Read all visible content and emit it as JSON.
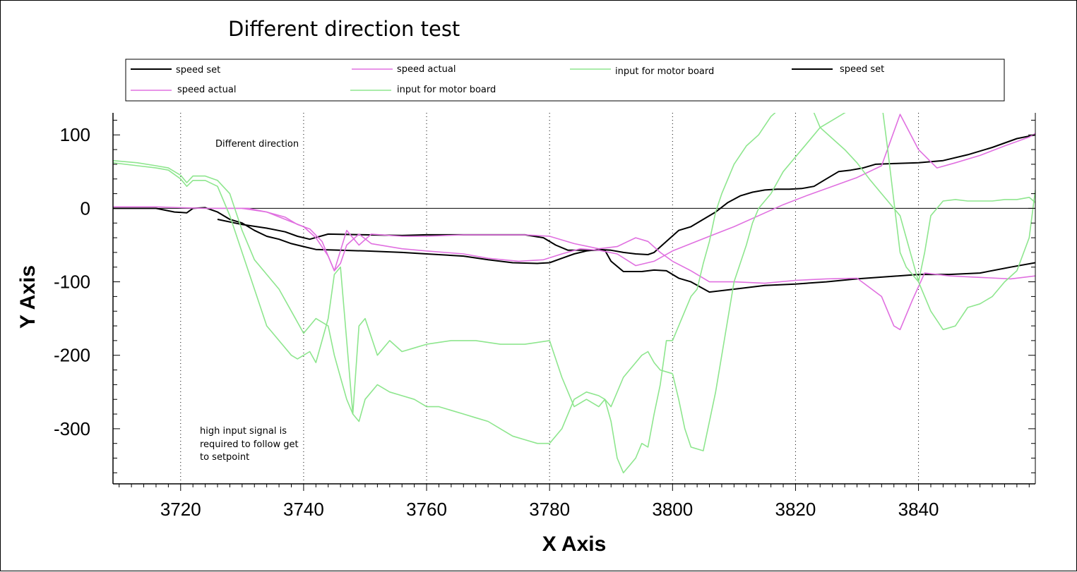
{
  "chart_data": {
    "type": "line",
    "title": "Different direction test",
    "xlabel": "X Axis",
    "ylabel": "Y Axis",
    "xlim": [
      3709,
      3859
    ],
    "ylim": [
      -375,
      130
    ],
    "x_ticks": [
      3720,
      3740,
      3760,
      3780,
      3800,
      3820,
      3840
    ],
    "y_ticks": [
      100,
      0,
      -100,
      -200,
      -300
    ],
    "x_tick_labels": [
      "3720",
      "3740",
      "3760",
      "3780",
      "3800",
      "3820",
      "3840"
    ],
    "y_tick_labels": [
      "100",
      "0",
      "-100",
      "-200",
      "-300"
    ],
    "grid": "vertical dotted at major x ticks",
    "zero_line": true,
    "legend_position": "top (boxed, two rows)",
    "legend": [
      {
        "label": "speed set",
        "color": "#000000"
      },
      {
        "label": "speed actual",
        "color": "#e070e0"
      },
      {
        "label": "input for motor board",
        "color": "#8ee68e"
      },
      {
        "label": "speed set",
        "color": "#000000"
      },
      {
        "label": "speed actual",
        "color": "#e070e0"
      },
      {
        "label": "input for motor board",
        "color": "#8ee68e"
      }
    ],
    "annotations": [
      "Different direction",
      "high input signal is",
      "required to follow get",
      "to setpoint"
    ],
    "series": [
      {
        "name": "speed set",
        "color": "#000000",
        "x": [
          3709,
          3716,
          3719,
          3721,
          3722,
          3724,
          3726,
          3728,
          3730,
          3732,
          3734,
          3736,
          3738,
          3740,
          3742,
          3746,
          3750,
          3756,
          3760,
          3766,
          3770,
          3774,
          3778,
          3780,
          3782,
          3784,
          3786,
          3788,
          3790,
          3792,
          3794,
          3796,
          3797,
          3799,
          3801,
          3803,
          3805,
          3807,
          3809,
          3811,
          3813,
          3815,
          3817,
          3819,
          3821,
          3823,
          3825,
          3827,
          3829,
          3831,
          3833,
          3836,
          3840,
          3844,
          3848,
          3852,
          3856,
          3859
        ],
        "y": [
          0,
          0,
          -5,
          -6,
          0,
          1,
          -5,
          -15,
          -20,
          -30,
          -38,
          -42,
          -48,
          -52,
          -56,
          -57,
          -58,
          -60,
          -62,
          -65,
          -70,
          -74,
          -75,
          -74,
          -68,
          -62,
          -58,
          -56,
          -57,
          -60,
          -62,
          -63,
          -60,
          -45,
          -30,
          -25,
          -15,
          -5,
          8,
          17,
          22,
          25,
          26,
          26,
          27,
          30,
          40,
          50,
          52,
          55,
          60,
          61,
          62,
          65,
          73,
          83,
          95,
          100
        ]
      },
      {
        "name": "speed set",
        "color": "#000000",
        "x": [
          3726,
          3730,
          3734,
          3737,
          3739,
          3741,
          3744,
          3750,
          3756,
          3760,
          3770,
          3776,
          3779,
          3781,
          3783,
          3786,
          3789,
          3790,
          3792,
          3795,
          3797,
          3799,
          3801,
          3803,
          3806,
          3810,
          3815,
          3820,
          3825,
          3830,
          3835,
          3840,
          3845,
          3850,
          3855,
          3859
        ],
        "y": [
          -15,
          -22,
          -27,
          -32,
          -38,
          -42,
          -35,
          -36,
          -37,
          -36,
          -36,
          -36,
          -40,
          -50,
          -57,
          -57,
          -57,
          -72,
          -86,
          -86,
          -84,
          -85,
          -95,
          -100,
          -114,
          -110,
          -105,
          -103,
          -100,
          -96,
          -93,
          -90,
          -90,
          -88,
          -80,
          -74
        ]
      },
      {
        "name": "speed actual",
        "color": "#e070e0",
        "x": [
          3709,
          3716,
          3720,
          3724,
          3728,
          3731,
          3734,
          3737,
          3739,
          3741,
          3743,
          3745,
          3746,
          3747,
          3749,
          3751,
          3756,
          3760,
          3766,
          3770,
          3775,
          3779,
          3782,
          3785,
          3788,
          3791,
          3794,
          3797,
          3800,
          3803,
          3806,
          3810,
          3814,
          3818,
          3822,
          3826,
          3830,
          3834,
          3837,
          3840,
          3843,
          3846,
          3850,
          3854,
          3858,
          3859
        ],
        "y": [
          2,
          2,
          1,
          0,
          0,
          0,
          -5,
          -12,
          -22,
          -28,
          -45,
          -85,
          -75,
          -50,
          -35,
          -48,
          -55,
          -58,
          -62,
          -68,
          -72,
          -70,
          -62,
          -55,
          -57,
          -62,
          -78,
          -72,
          -58,
          -48,
          -38,
          -25,
          -10,
          5,
          18,
          30,
          42,
          58,
          128,
          80,
          55,
          62,
          72,
          85,
          97,
          102
        ]
      },
      {
        "name": "speed actual",
        "color": "#e070e0",
        "x": [
          3730,
          3734,
          3737,
          3740,
          3742,
          3744,
          3745,
          3747,
          3749,
          3751,
          3756,
          3760,
          3766,
          3770,
          3776,
          3780,
          3784,
          3788,
          3791,
          3794,
          3796,
          3798,
          3800,
          3803,
          3806,
          3810,
          3815,
          3820,
          3825,
          3830,
          3834,
          3836,
          3837,
          3839,
          3841,
          3845,
          3850,
          3855,
          3859
        ],
        "y": [
          0,
          -5,
          -15,
          -25,
          -40,
          -65,
          -85,
          -30,
          -50,
          -35,
          -38,
          -38,
          -36,
          -36,
          -36,
          -38,
          -48,
          -55,
          -52,
          -40,
          -45,
          -60,
          -72,
          -85,
          -100,
          -100,
          -102,
          -98,
          -96,
          -95,
          -120,
          -160,
          -165,
          -125,
          -88,
          -92,
          -94,
          -96,
          -92
        ]
      },
      {
        "name": "input for motor board",
        "color": "#8ee68e",
        "x": [
          3709,
          3713,
          3716,
          3718,
          3720,
          3721,
          3722,
          3724,
          3726,
          3728,
          3730,
          3732,
          3734,
          3736,
          3738,
          3739,
          3740,
          3741,
          3742,
          3743,
          3744,
          3745,
          3746,
          3747,
          3748,
          3749,
          3750,
          3752,
          3754,
          3756,
          3758,
          3760,
          3764,
          3768,
          3772,
          3776,
          3780,
          3782,
          3784,
          3786,
          3788,
          3789,
          3790,
          3791,
          3792,
          3793,
          3794,
          3795,
          3796,
          3797,
          3798,
          3799,
          3800,
          3801,
          3802,
          3803,
          3804,
          3805,
          3806,
          3807,
          3808,
          3810,
          3812,
          3814,
          3816,
          3818,
          3820,
          3821,
          3822,
          3823,
          3824,
          3826,
          3828,
          3830,
          3832,
          3834,
          3836,
          3837,
          3838,
          3839,
          3840,
          3842,
          3844,
          3846,
          3848,
          3850,
          3852,
          3854,
          3856,
          3858,
          3859
        ],
        "y": [
          62,
          58,
          55,
          52,
          40,
          30,
          38,
          38,
          30,
          -10,
          -60,
          -110,
          -160,
          -180,
          -200,
          -205,
          -200,
          -195,
          -210,
          -180,
          -150,
          -90,
          -80,
          -180,
          -280,
          -160,
          -150,
          -200,
          -180,
          -195,
          -190,
          -185,
          -180,
          -180,
          -185,
          -185,
          -180,
          -230,
          -270,
          -260,
          -270,
          -260,
          -290,
          -340,
          -360,
          -350,
          -340,
          -320,
          -325,
          -280,
          -240,
          -180,
          -180,
          -160,
          -140,
          -120,
          -110,
          -75,
          -45,
          -5,
          20,
          60,
          85,
          100,
          125,
          140,
          150,
          155,
          150,
          130,
          110,
          95,
          80,
          62,
          40,
          20,
          0,
          -10,
          -40,
          -70,
          -100,
          -140,
          -165,
          -160,
          -135,
          -130,
          -120,
          -100,
          -85,
          -40,
          25
        ]
      },
      {
        "name": "input for motor board",
        "color": "#8ee68e",
        "x": [
          3709,
          3713,
          3716,
          3718,
          3720,
          3721,
          3722,
          3724,
          3726,
          3728,
          3730,
          3732,
          3734,
          3736,
          3738,
          3740,
          3742,
          3744,
          3745,
          3746,
          3747,
          3748,
          3749,
          3750,
          3752,
          3754,
          3756,
          3758,
          3760,
          3762,
          3764,
          3766,
          3768,
          3770,
          3772,
          3774,
          3776,
          3778,
          3780,
          3782,
          3784,
          3786,
          3788,
          3789,
          3790,
          3792,
          3794,
          3795,
          3796,
          3797,
          3798,
          3800,
          3801,
          3802,
          3803,
          3805,
          3807,
          3808,
          3809,
          3810,
          3812,
          3813,
          3814,
          3816,
          3818,
          3820,
          3822,
          3824,
          3826,
          3828,
          3829,
          3830,
          3832,
          3833,
          3834,
          3835,
          3836,
          3837,
          3838,
          3840,
          3841,
          3842,
          3844,
          3846,
          3848,
          3850,
          3852,
          3854,
          3856,
          3858,
          3859
        ],
        "y": [
          65,
          62,
          58,
          55,
          45,
          35,
          44,
          44,
          38,
          20,
          -30,
          -70,
          -90,
          -110,
          -140,
          -170,
          -150,
          -160,
          -200,
          -230,
          -260,
          -280,
          -290,
          -260,
          -240,
          -250,
          -255,
          -260,
          -270,
          -270,
          -275,
          -280,
          -285,
          -290,
          -300,
          -310,
          -315,
          -320,
          -320,
          -300,
          -260,
          -250,
          -255,
          -260,
          -270,
          -230,
          -210,
          -200,
          -195,
          -210,
          -220,
          -225,
          -260,
          -300,
          -325,
          -330,
          -250,
          -200,
          -150,
          -100,
          -50,
          -20,
          0,
          20,
          50,
          70,
          90,
          110,
          120,
          130,
          135,
          140,
          150,
          155,
          145,
          80,
          10,
          -60,
          -80,
          -100,
          -60,
          -10,
          10,
          12,
          10,
          10,
          10,
          12,
          12,
          15,
          8
        ]
      }
    ]
  }
}
